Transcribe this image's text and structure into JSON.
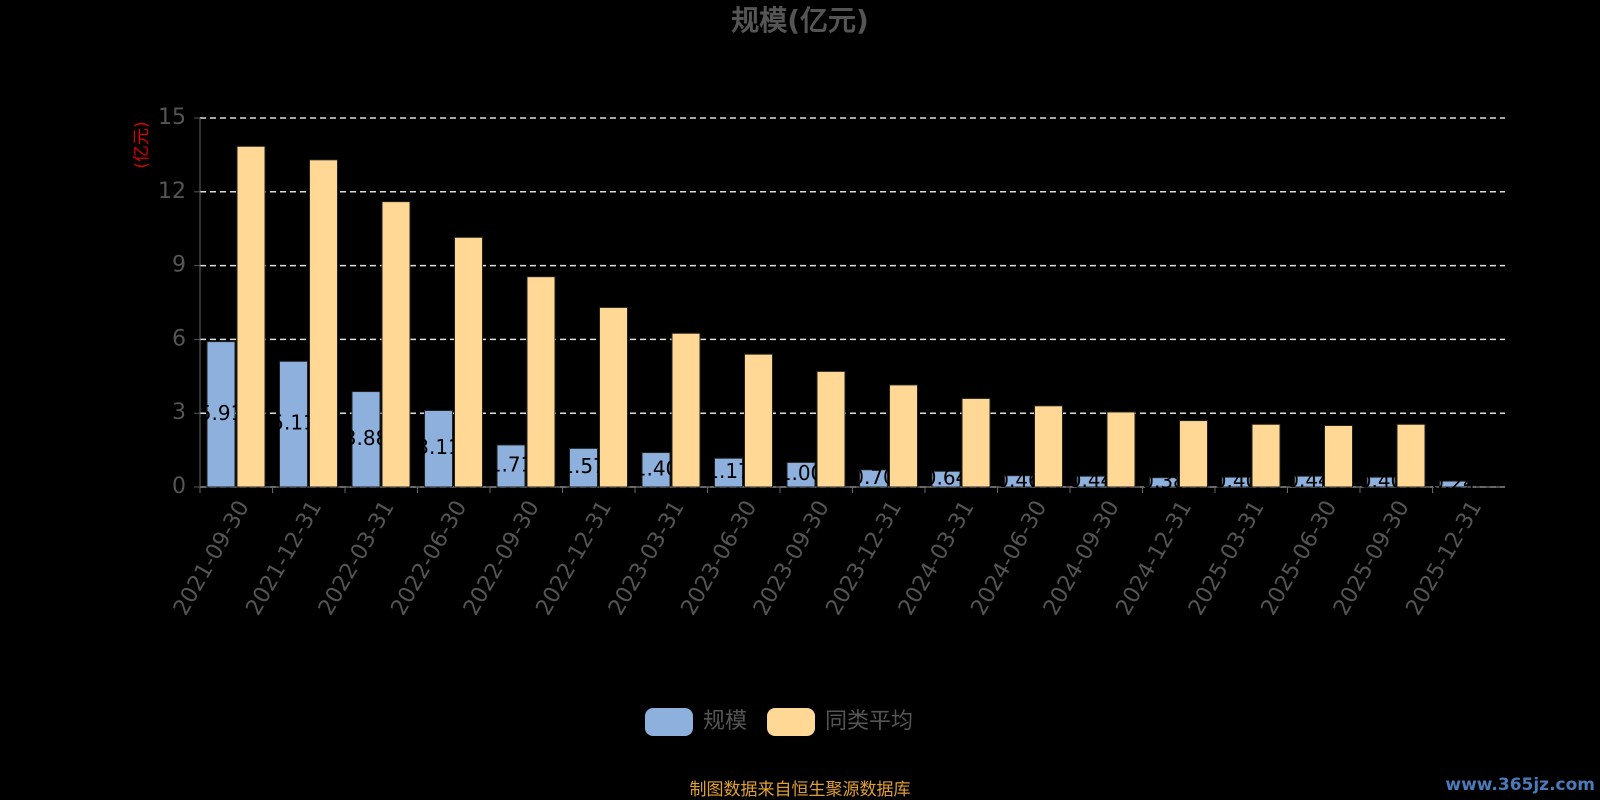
{
  "chart_data": {
    "type": "bar",
    "title": "规模(亿元)",
    "y_axis_label": "(亿元)",
    "categories": [
      "2021-09-30",
      "2021-12-31",
      "2022-03-31",
      "2022-06-30",
      "2022-09-30",
      "2022-12-31",
      "2023-03-31",
      "2023-06-30",
      "2023-09-30",
      "2023-12-31",
      "2024-03-31",
      "2024-06-30",
      "2024-09-30",
      "2024-12-31",
      "2025-03-31",
      "2025-06-30",
      "2025-09-30",
      "2025-12-31"
    ],
    "series": [
      {
        "name": "规模",
        "color": "#8eb0dc",
        "values": [
          5.91,
          5.11,
          3.88,
          3.11,
          1.71,
          1.57,
          1.4,
          1.17,
          1.0,
          0.7,
          0.64,
          0.46,
          0.44,
          0.38,
          0.4,
          0.44,
          0.4,
          0.24
        ],
        "value_labels": [
          "5.91",
          "5.11",
          "3.88",
          "3.11",
          "1.71",
          "1.57",
          "1.40",
          "1.17",
          "1.00",
          "0.70",
          "0.64",
          "0.46",
          "0.44",
          "0.38",
          "0.40",
          "0.44",
          "0.40",
          "0.24"
        ]
      },
      {
        "name": "同类平均",
        "color": "#ffd896",
        "values": [
          13.85,
          13.3,
          11.6,
          10.15,
          8.55,
          7.3,
          6.25,
          5.4,
          4.7,
          4.15,
          3.6,
          3.3,
          3.05,
          2.7,
          2.55,
          2.5,
          2.55,
          null
        ]
      }
    ],
    "ylim": [
      0,
      15
    ],
    "yticks": [
      0,
      3,
      6,
      9,
      12,
      15
    ],
    "grid": true,
    "legend": "bottom",
    "footer": "制图数据来自恒生聚源数据库",
    "watermark": "www.365jz.com"
  }
}
